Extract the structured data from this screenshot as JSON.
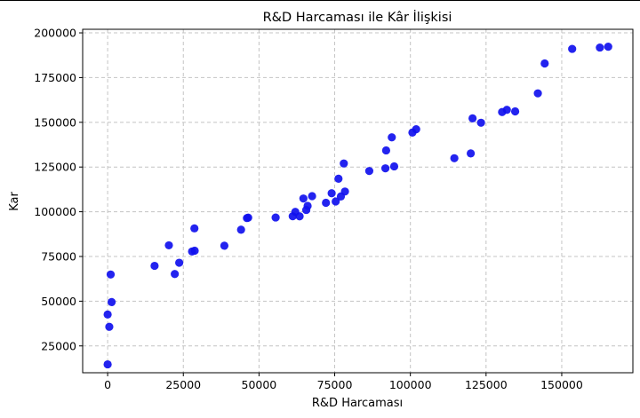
{
  "chart_data": {
    "type": "scatter",
    "title": "R&D Harcaması ile Kâr İlişkisi",
    "xlabel": "R&D Harcaması",
    "ylabel": "Kar",
    "xlim": [
      -8250,
      173500
    ],
    "ylim": [
      10000,
      202000
    ],
    "xticks": [
      0,
      25000,
      50000,
      75000,
      100000,
      125000,
      150000
    ],
    "yticks": [
      25000,
      50000,
      75000,
      100000,
      125000,
      150000,
      175000,
      200000
    ],
    "grid": true,
    "marker_color": "#1010ee",
    "x": [
      165349,
      162598,
      153442,
      144372,
      142107,
      131877,
      134615,
      130298,
      120543,
      123335,
      101913,
      100672,
      93864,
      91992,
      119943,
      114524,
      78013,
      94657,
      91749,
      86420,
      76254,
      78389,
      73995,
      67533,
      77044,
      64665,
      75329,
      72108,
      66052,
      65605,
      61994,
      61136,
      63409,
      55494,
      46427,
      46015,
      28664,
      44070,
      20230,
      38558,
      28754,
      27893,
      23641,
      15506,
      22178,
      1001,
      1316,
      0,
      543,
      0
    ],
    "y": [
      192262,
      191792,
      191050,
      182902,
      166188,
      156991,
      156123,
      155753,
      152212,
      149760,
      146122,
      144259,
      141586,
      134307,
      132602,
      129917,
      126993,
      125370,
      124267,
      122777,
      118474,
      111314,
      110352,
      108734,
      108552,
      107404,
      105734,
      105008,
      103282,
      101004,
      99938,
      97484,
      97427,
      96779,
      96712,
      96479,
      90708,
      89949,
      81229,
      81005,
      78240,
      77798,
      71498,
      69759,
      65200,
      64927,
      49491,
      42560,
      35673,
      14681
    ]
  }
}
